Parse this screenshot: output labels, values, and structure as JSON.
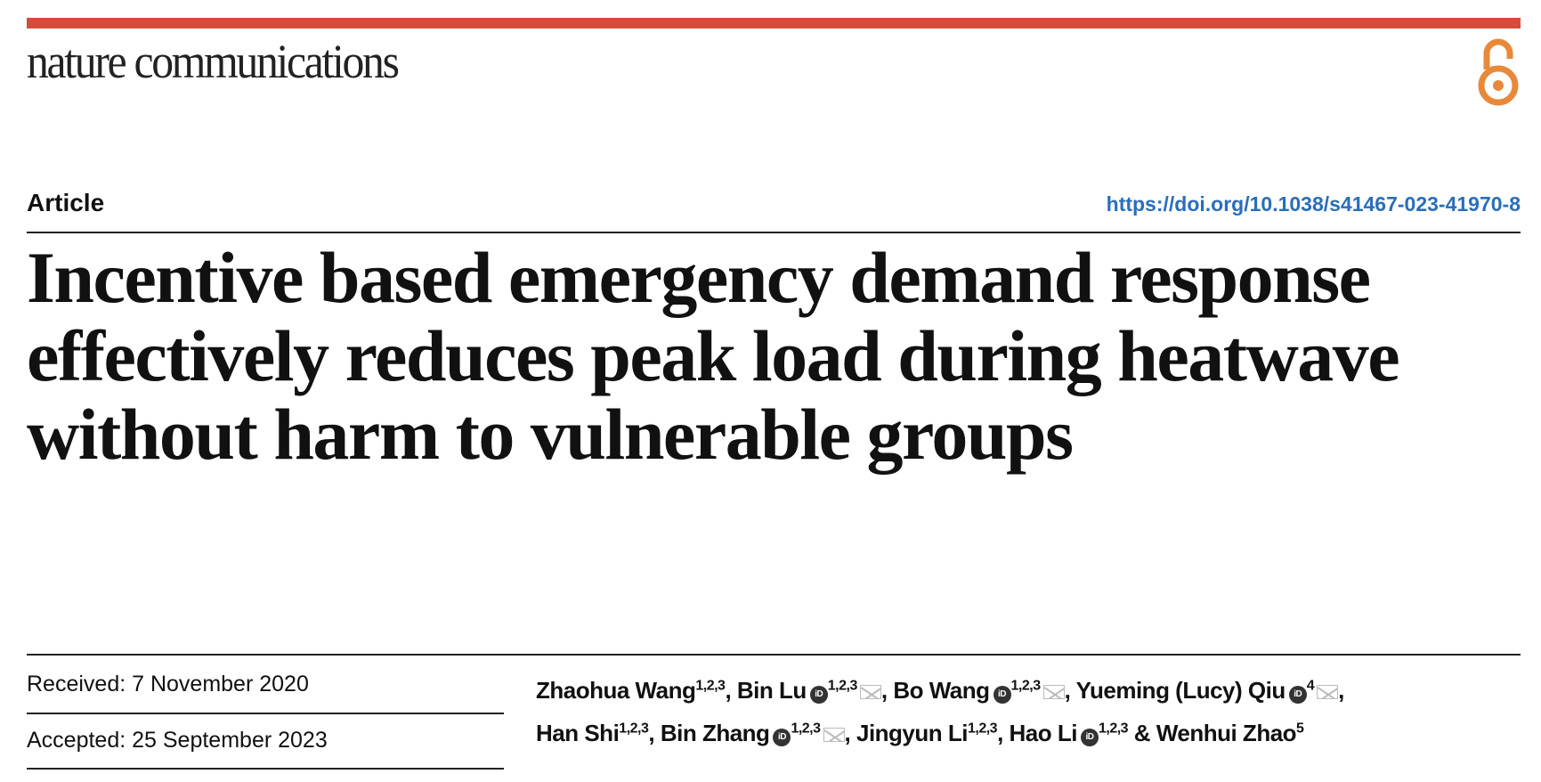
{
  "header": {
    "journal": "nature communications",
    "open_access_icon": "open-access-lock-icon",
    "accent_color": "#d64b3c",
    "oa_color": "#e8893a"
  },
  "article": {
    "type": "Article",
    "doi": "https://doi.org/10.1038/s41467-023-41970-8",
    "title": "Incentive based emergency demand response effectively reduces peak load during heatwave without harm to vulnerable groups",
    "received": "Received: 7 November 2020",
    "accepted": "Accepted: 25 September 2023"
  },
  "authors": [
    {
      "name": "Zhaohua Wang",
      "affil": "1,2,3",
      "orcid": false,
      "email": false,
      "sep": ", "
    },
    {
      "name": "Bin Lu",
      "affil": "1,2,3",
      "orcid": true,
      "email": true,
      "sep": ", "
    },
    {
      "name": "Bo Wang",
      "affil": "1,2,3",
      "orcid": true,
      "email": true,
      "sep": ", "
    },
    {
      "name": "Yueming (Lucy) Qiu",
      "affil": "4",
      "orcid": true,
      "email": true,
      "sep": ", "
    },
    {
      "name": "Han Shi",
      "affil": "1,2,3",
      "orcid": false,
      "email": false,
      "sep": ", "
    },
    {
      "name": "Bin Zhang",
      "affil": "1,2,3",
      "orcid": true,
      "email": true,
      "sep": ", "
    },
    {
      "name": "Jingyun Li",
      "affil": "1,2,3",
      "orcid": false,
      "email": false,
      "sep": ", "
    },
    {
      "name": "Hao Li",
      "affil": "1,2,3",
      "orcid": true,
      "email": false,
      "sep": " & "
    },
    {
      "name": "Wenhui Zhao",
      "affil": "5",
      "orcid": false,
      "email": false,
      "sep": ""
    }
  ]
}
